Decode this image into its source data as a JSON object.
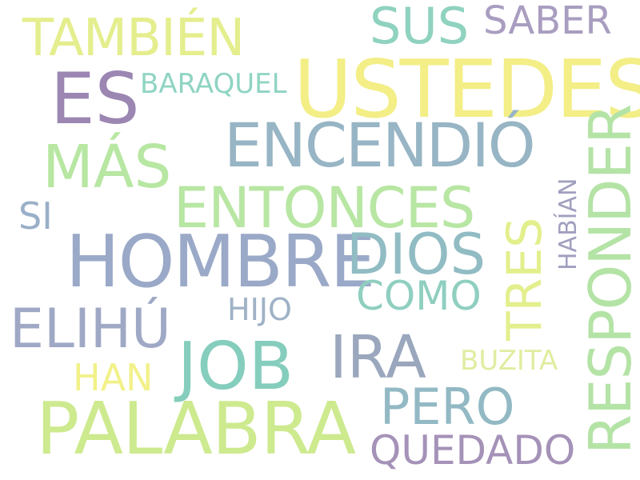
{
  "words": [
    {
      "text": "USTEDES",
      "color": "#f3ee86",
      "vertical": false
    },
    {
      "text": "HOMBRE",
      "color": "#9aa9c7",
      "vertical": false
    },
    {
      "text": "PALABRA",
      "color": "#cdea8f",
      "vertical": false
    },
    {
      "text": "ES",
      "color": "#9c86b2",
      "vertical": false
    },
    {
      "text": "JOB",
      "color": "#85cdbd",
      "vertical": false
    },
    {
      "text": "RESPONDER",
      "color": "#b4e3a6",
      "vertical": true
    },
    {
      "text": "ENCENDIÓ",
      "color": "#97b5c4",
      "vertical": false
    },
    {
      "text": "ENTONCES",
      "color": "#b8e6a3",
      "vertical": false
    },
    {
      "text": "MÁS",
      "color": "#b7e7a2",
      "vertical": false
    },
    {
      "text": "DIOS",
      "color": "#91bcc3",
      "vertical": false
    },
    {
      "text": "IRA",
      "color": "#9aa7bd",
      "vertical": false
    },
    {
      "text": "ELIHÚ",
      "color": "#9fa8c5",
      "vertical": false
    },
    {
      "text": "TAMBIÉN",
      "color": "#e4ee8d",
      "vertical": false
    },
    {
      "text": "TRES",
      "color": "#e3ef8c",
      "vertical": true
    },
    {
      "text": "PERO",
      "color": "#92b9c4",
      "vertical": false
    },
    {
      "text": "SUS",
      "color": "#8fd2bf",
      "vertical": false
    },
    {
      "text": "QUEDADO",
      "color": "#a592b8",
      "vertical": false
    },
    {
      "text": "COMO",
      "color": "#8fcfc0",
      "vertical": false
    },
    {
      "text": "SABER",
      "color": "#a99dc0",
      "vertical": false
    },
    {
      "text": "SI",
      "color": "#9aafc8",
      "vertical": false
    },
    {
      "text": "HAN",
      "color": "#f2f18a",
      "vertical": false
    },
    {
      "text": "HIJO",
      "color": "#9fb2c6",
      "vertical": false
    },
    {
      "text": "BARAQUEL",
      "color": "#8fd4c3",
      "vertical": false
    },
    {
      "text": "BUZITA",
      "color": "#e0eda0",
      "vertical": false
    },
    {
      "text": "HABÍAN",
      "color": "#a19fbf",
      "vertical": true
    }
  ]
}
